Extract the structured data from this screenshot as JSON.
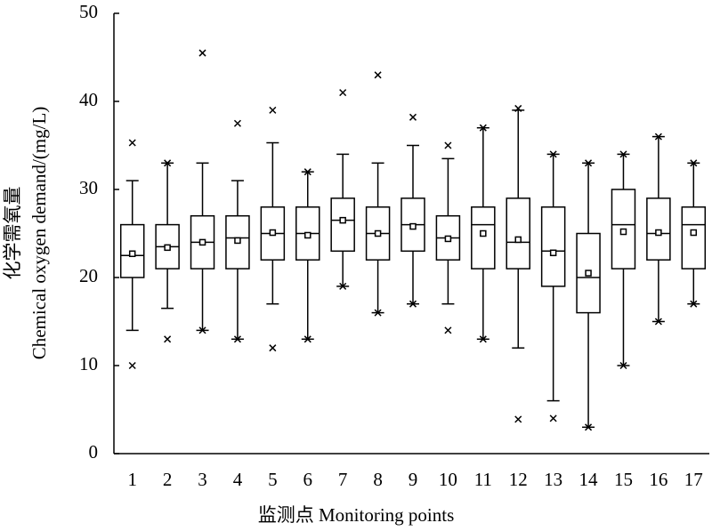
{
  "chart_data": {
    "type": "box",
    "y_label_lines": [
      "化学需氧量",
      "Chemical oxygen demand/(mg/L)"
    ],
    "x_label": "监测点 Monitoring points",
    "categories": [
      "1",
      "2",
      "3",
      "4",
      "5",
      "6",
      "7",
      "8",
      "9",
      "10",
      "11",
      "12",
      "13",
      "14",
      "15",
      "16",
      "17"
    ],
    "boxes": [
      {
        "low": 14,
        "q1": 20,
        "median": 22.5,
        "q3": 26,
        "high": 31,
        "mean": 22.7,
        "outliers": [
          35.3,
          10
        ]
      },
      {
        "low": 16.5,
        "q1": 21,
        "median": 23.5,
        "q3": 26,
        "high": 33,
        "mean": 23.4,
        "outliers": [
          33,
          13
        ]
      },
      {
        "low": 14,
        "q1": 21,
        "median": 24,
        "q3": 27,
        "high": 33,
        "mean": 24,
        "outliers": [
          45.5,
          14
        ]
      },
      {
        "low": 13,
        "q1": 21,
        "median": 24.5,
        "q3": 27,
        "high": 31,
        "mean": 24.2,
        "outliers": [
          37.5,
          13
        ]
      },
      {
        "low": 17,
        "q1": 22,
        "median": 25,
        "q3": 28,
        "high": 35.3,
        "mean": 25.1,
        "outliers": [
          39,
          12
        ]
      },
      {
        "low": 13,
        "q1": 22,
        "median": 25,
        "q3": 28,
        "high": 32,
        "mean": 24.8,
        "outliers": [
          32,
          13
        ]
      },
      {
        "low": 19,
        "q1": 23,
        "median": 26.5,
        "q3": 29,
        "high": 34,
        "mean": 26.5,
        "outliers": [
          41,
          19
        ]
      },
      {
        "low": 16,
        "q1": 22,
        "median": 25,
        "q3": 28,
        "high": 33,
        "mean": 25,
        "outliers": [
          43,
          16
        ]
      },
      {
        "low": 17,
        "q1": 23,
        "median": 26,
        "q3": 29,
        "high": 35,
        "mean": 25.8,
        "outliers": [
          38.2,
          17
        ]
      },
      {
        "low": 17,
        "q1": 22,
        "median": 24.5,
        "q3": 27,
        "high": 33.5,
        "mean": 24.4,
        "outliers": [
          35,
          14
        ]
      },
      {
        "low": 13,
        "q1": 21,
        "median": 26,
        "q3": 28,
        "high": 37,
        "mean": 25,
        "outliers": [
          37,
          13
        ]
      },
      {
        "low": 12,
        "q1": 21,
        "median": 24,
        "q3": 29,
        "high": 39,
        "mean": 24.3,
        "outliers": [
          39.2,
          3.9
        ]
      },
      {
        "low": 6,
        "q1": 19,
        "median": 23,
        "q3": 28,
        "high": 34,
        "mean": 22.8,
        "outliers": [
          34,
          4
        ]
      },
      {
        "low": 3,
        "q1": 16,
        "median": 20,
        "q3": 25,
        "high": 33,
        "mean": 20.5,
        "outliers": [
          33,
          3
        ]
      },
      {
        "low": 10,
        "q1": 21,
        "median": 26,
        "q3": 30,
        "high": 34,
        "mean": 25.2,
        "outliers": [
          34,
          10
        ]
      },
      {
        "low": 15,
        "q1": 22,
        "median": 25,
        "q3": 29,
        "high": 36,
        "mean": 25.1,
        "outliers": [
          36,
          15
        ]
      },
      {
        "low": 17,
        "q1": 21,
        "median": 26,
        "q3": 28,
        "high": 33,
        "mean": 25.1,
        "outliers": [
          33,
          17
        ]
      }
    ],
    "color": "#000000",
    "ylim": [
      0,
      50
    ],
    "yticks": [
      0,
      10,
      20,
      30,
      40,
      50
    ]
  }
}
